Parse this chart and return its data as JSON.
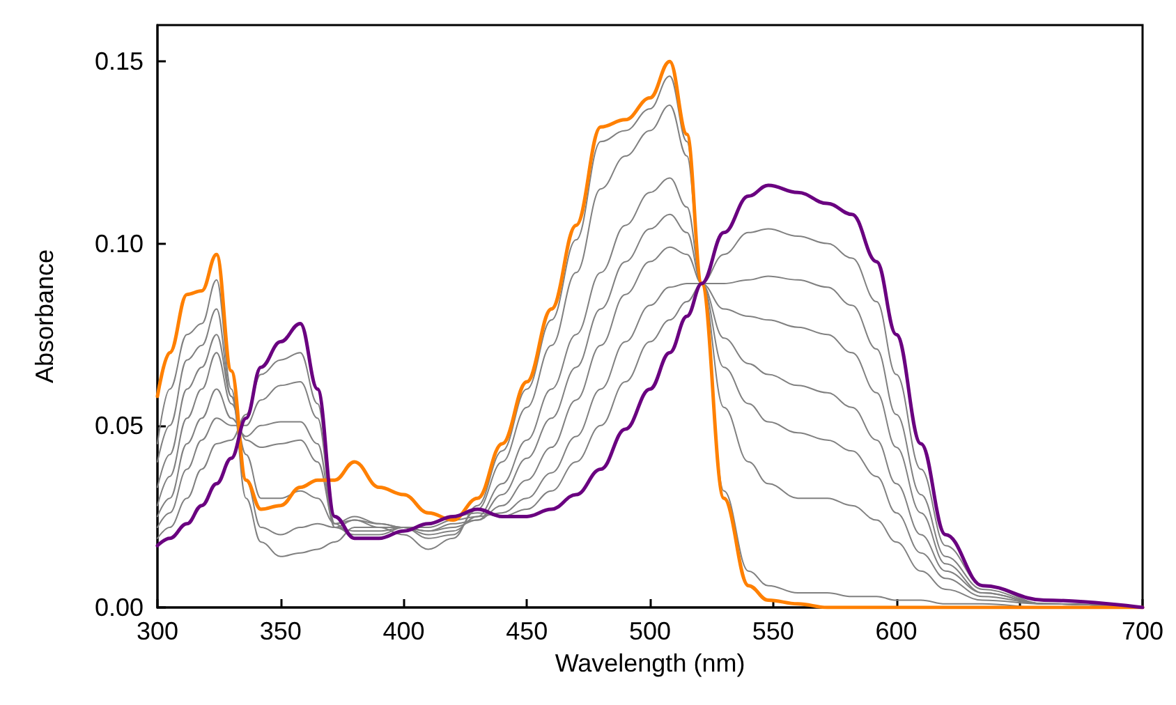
{
  "chart_data": {
    "type": "line",
    "xlabel": "Wavelength (nm)",
    "ylabel": "Absorbance",
    "xlim": [
      300,
      700
    ],
    "xticks": [
      300,
      350,
      400,
      450,
      500,
      550,
      600,
      650,
      700
    ],
    "ylim": [
      0,
      0.16
    ],
    "yticks": [
      {
        "value": 0,
        "label": "0.00"
      },
      {
        "value": 0.05,
        "label": "0.05"
      },
      {
        "value": 0.1,
        "label": "0.10"
      },
      {
        "value": 0.15,
        "label": "0.15"
      }
    ],
    "grid": false,
    "marker": "none",
    "line_style": "solid",
    "x": [
      300,
      305,
      312,
      318,
      324,
      330,
      336,
      342,
      350,
      358,
      365,
      372,
      380,
      390,
      400,
      410,
      420,
      430,
      440,
      450,
      460,
      470,
      480,
      490,
      500,
      508,
      515,
      521,
      530,
      540,
      548,
      560,
      572,
      582,
      592,
      600,
      610,
      620,
      635,
      660,
      700
    ],
    "series": [
      {
        "color": "#808080",
        "values": [
          0.045,
          0.06,
          0.075,
          0.078,
          0.09,
          0.06,
          0.03,
          0.018,
          0.014,
          0.015,
          0.016,
          0.018,
          0.022,
          0.022,
          0.02,
          0.016,
          0.019,
          0.028,
          0.043,
          0.06,
          0.079,
          0.101,
          0.128,
          0.131,
          0.137,
          0.146,
          0.128,
          0.089,
          0.032,
          0.01,
          0.006,
          0.004,
          0.004,
          0.003,
          0.003,
          0.002,
          0.002,
          0.001,
          0.001,
          0,
          0
        ]
      },
      {
        "color": "#808080",
        "values": [
          0.04,
          0.05,
          0.068,
          0.072,
          0.082,
          0.058,
          0.035,
          0.022,
          0.02,
          0.022,
          0.023,
          0.022,
          0.024,
          0.023,
          0.022,
          0.019,
          0.02,
          0.027,
          0.04,
          0.055,
          0.072,
          0.092,
          0.115,
          0.124,
          0.131,
          0.138,
          0.124,
          0.089,
          0.055,
          0.04,
          0.034,
          0.03,
          0.03,
          0.028,
          0.024,
          0.018,
          0.01,
          0.005,
          0.002,
          0.001,
          0
        ]
      },
      {
        "color": "#808080",
        "values": [
          0.033,
          0.042,
          0.06,
          0.066,
          0.075,
          0.058,
          0.042,
          0.03,
          0.03,
          0.032,
          0.03,
          0.023,
          0.025,
          0.023,
          0.022,
          0.02,
          0.021,
          0.025,
          0.034,
          0.046,
          0.06,
          0.075,
          0.092,
          0.105,
          0.114,
          0.118,
          0.11,
          0.089,
          0.066,
          0.056,
          0.051,
          0.048,
          0.046,
          0.043,
          0.036,
          0.026,
          0.015,
          0.008,
          0.003,
          0.001,
          0
        ]
      },
      {
        "color": "#808080",
        "values": [
          0.028,
          0.036,
          0.052,
          0.06,
          0.07,
          0.056,
          0.046,
          0.044,
          0.045,
          0.046,
          0.04,
          0.023,
          0.024,
          0.022,
          0.022,
          0.021,
          0.022,
          0.024,
          0.031,
          0.041,
          0.052,
          0.066,
          0.082,
          0.095,
          0.104,
          0.108,
          0.103,
          0.089,
          0.074,
          0.067,
          0.064,
          0.061,
          0.059,
          0.055,
          0.046,
          0.034,
          0.02,
          0.01,
          0.004,
          0.001,
          0
        ]
      },
      {
        "color": "#808080",
        "values": [
          0.025,
          0.03,
          0.045,
          0.052,
          0.06,
          0.052,
          0.047,
          0.05,
          0.051,
          0.051,
          0.045,
          0.022,
          0.021,
          0.021,
          0.022,
          0.021,
          0.023,
          0.024,
          0.028,
          0.035,
          0.044,
          0.057,
          0.072,
          0.086,
          0.095,
          0.099,
          0.097,
          0.089,
          0.082,
          0.08,
          0.079,
          0.077,
          0.075,
          0.07,
          0.059,
          0.044,
          0.026,
          0.012,
          0.004,
          0.001,
          0
        ]
      },
      {
        "color": "#808080",
        "values": [
          0.022,
          0.026,
          0.038,
          0.046,
          0.052,
          0.05,
          0.05,
          0.057,
          0.061,
          0.062,
          0.052,
          0.022,
          0.02,
          0.02,
          0.022,
          0.022,
          0.024,
          0.025,
          0.026,
          0.03,
          0.037,
          0.047,
          0.06,
          0.073,
          0.083,
          0.088,
          0.089,
          0.089,
          0.089,
          0.09,
          0.091,
          0.09,
          0.088,
          0.083,
          0.071,
          0.053,
          0.031,
          0.014,
          0.005,
          0.001,
          0
        ]
      },
      {
        "color": "#808080",
        "values": [
          0.019,
          0.022,
          0.03,
          0.038,
          0.045,
          0.046,
          0.053,
          0.064,
          0.068,
          0.07,
          0.056,
          0.023,
          0.019,
          0.019,
          0.021,
          0.023,
          0.025,
          0.026,
          0.025,
          0.027,
          0.032,
          0.04,
          0.05,
          0.062,
          0.073,
          0.079,
          0.084,
          0.089,
          0.097,
          0.103,
          0.104,
          0.102,
          0.1,
          0.096,
          0.084,
          0.064,
          0.038,
          0.017,
          0.006,
          0.001,
          0
        ]
      },
      {
        "color": "#ff8000",
        "values": [
          0.058,
          0.07,
          0.086,
          0.087,
          0.097,
          0.065,
          0.035,
          0.027,
          0.028,
          0.033,
          0.035,
          0.035,
          0.04,
          0.033,
          0.031,
          0.026,
          0.024,
          0.03,
          0.045,
          0.062,
          0.082,
          0.105,
          0.132,
          0.134,
          0.14,
          0.15,
          0.13,
          0.089,
          0.03,
          0.006,
          0.002,
          0.001,
          0,
          0,
          0,
          0,
          0,
          0,
          0,
          0,
          0
        ]
      },
      {
        "color": "#6a0080",
        "values": [
          0.017,
          0.019,
          0.023,
          0.028,
          0.034,
          0.041,
          0.052,
          0.066,
          0.073,
          0.078,
          0.06,
          0.025,
          0.019,
          0.019,
          0.021,
          0.023,
          0.025,
          0.027,
          0.025,
          0.025,
          0.027,
          0.031,
          0.038,
          0.049,
          0.06,
          0.07,
          0.08,
          0.089,
          0.103,
          0.113,
          0.116,
          0.114,
          0.111,
          0.108,
          0.095,
          0.075,
          0.045,
          0.02,
          0.006,
          0.002,
          0
        ]
      }
    ]
  }
}
